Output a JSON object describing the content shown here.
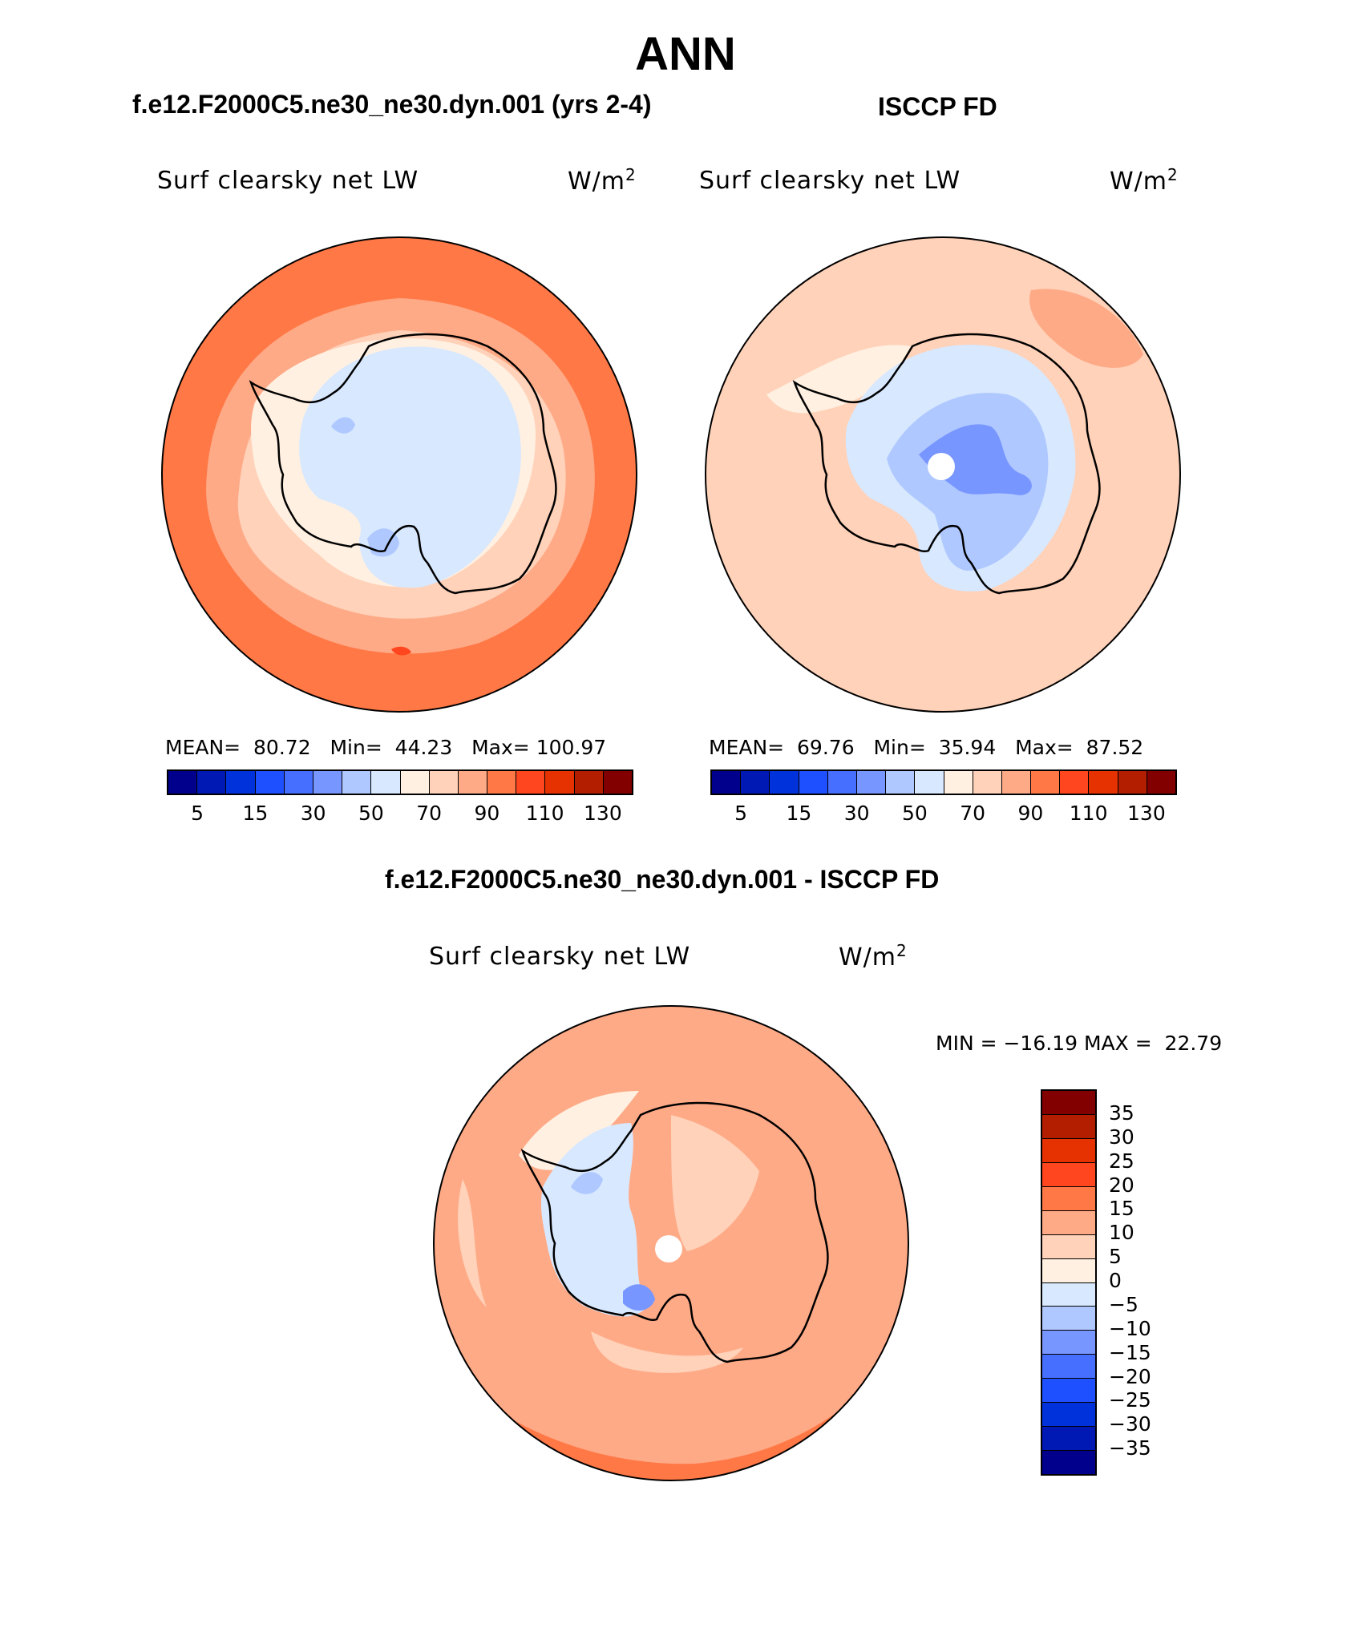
{
  "title": "ANN",
  "panels": [
    {
      "id": "model",
      "header": "f.e12.F2000C5.ne30_ne30.dyn.001 (yrs 2-4)",
      "variable": "Surf clearsky net LW",
      "units_base": "W/m",
      "units_exp": "2",
      "stats": {
        "mean_label": "MEAN=",
        "mean": "80.72",
        "min_label": "Min=",
        "min": "44.23",
        "max_label": "Max=",
        "max": "100.97"
      },
      "pole_hole": false
    },
    {
      "id": "obs",
      "header": "ISCCP FD",
      "variable": "Surf clearsky net LW",
      "units_base": "W/m",
      "units_exp": "2",
      "stats": {
        "mean_label": "MEAN=",
        "mean": "69.76",
        "min_label": "Min=",
        "min": "35.94",
        "max_label": "Max=",
        "max": "87.52"
      },
      "pole_hole": true
    },
    {
      "id": "diff",
      "header": "f.e12.F2000C5.ne30_ne30.dyn.001 - ISCCP FD",
      "variable": "Surf clearsky net LW",
      "units_base": "W/m",
      "units_exp": "2",
      "stats_text": "MIN = −16.19 MAX =  22.79",
      "pole_hole": true
    }
  ],
  "colorbar_abs": {
    "colors": [
      "#00008c",
      "#0019b4",
      "#0032dc",
      "#1e50ff",
      "#466eff",
      "#7896ff",
      "#afc8ff",
      "#d7e8ff",
      "#fff0e1",
      "#ffd2b9",
      "#ffaa87",
      "#ff7846",
      "#ff461e",
      "#e63200",
      "#b41e00",
      "#820000"
    ],
    "tick_labels": [
      "5",
      "15",
      "30",
      "50",
      "70",
      "90",
      "110",
      "130"
    ],
    "tick_boundaries": [
      1,
      3,
      5,
      7,
      9,
      11,
      13,
      15
    ]
  },
  "colorbar_diff": {
    "colors_top_to_bottom": [
      "#820000",
      "#b41e00",
      "#e63200",
      "#ff461e",
      "#ff7846",
      "#ffaa87",
      "#ffd2b9",
      "#fff0e1",
      "#d7e8ff",
      "#afc8ff",
      "#7896ff",
      "#466eff",
      "#1e50ff",
      "#0032dc",
      "#0019b4",
      "#00008c"
    ],
    "labels_top_to_bottom": [
      "35",
      "30",
      "25",
      "20",
      "15",
      "10",
      "5",
      "0",
      "−5",
      "−10",
      "−15",
      "−20",
      "−25",
      "−30",
      "−35"
    ]
  }
}
